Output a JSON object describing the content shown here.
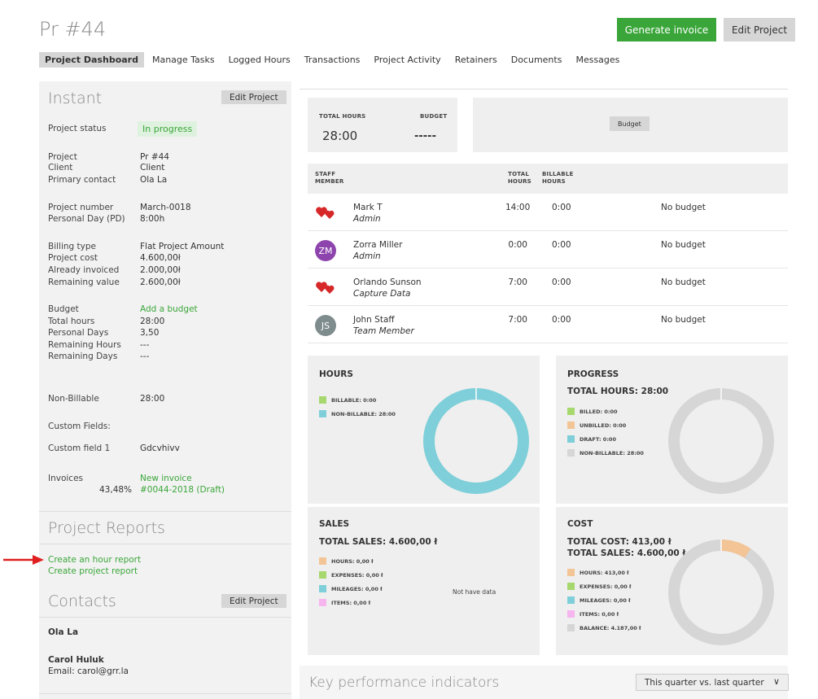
{
  "title": "Pr #44",
  "header": {
    "generate": "Generate invoice",
    "edit": "Edit Project"
  },
  "tabs": [
    "Project Dashboard",
    "Manage Tasks",
    "Logged Hours",
    "Transactions",
    "Project Activity",
    "Retainers",
    "Documents",
    "Messages"
  ],
  "instant": {
    "title": "Instant",
    "edit": "Edit Project",
    "status_label": "Project status",
    "status": "In progress",
    "project_label": "Project",
    "project": "Pr #44",
    "client_label": "Client",
    "client": "Client",
    "contact_label": "Primary contact",
    "contact": "Ola La",
    "number_label": "Project number",
    "number": "March-0018",
    "pd_label": "Personal Day (PD)",
    "pd": "8:00h",
    "billing_label": "Billing type",
    "billing": "Flat Project Amount",
    "cost_label": "Project cost",
    "cost": "4.600,00ł",
    "invoiced_label": "Already invoiced",
    "invoiced": "2.000,00ł",
    "remaining_label": "Remaining value",
    "remaining": "2.600,00ł",
    "budget_label": "Budget",
    "budget": "Add a budget",
    "total_hours_label": "Total hours",
    "total_hours": "28:00",
    "personal_days_label": "Personal Days",
    "personal_days": "3,50",
    "rem_hours_label": "Remaining Hours",
    "rem_hours": "---",
    "rem_days_label": "Remaining Days",
    "rem_days": "---",
    "nonbill_label": "Non-Billable",
    "nonbill": "28:00",
    "custom_fields": "Custom Fields:",
    "cf1_label": "Custom field 1",
    "cf1": "Gdcvhivv",
    "invoices_label": "Invoices",
    "new_invoice": "New invoice",
    "invoice_pct": "43,48%",
    "invoice_link": "#0044-2018 (Draft)"
  },
  "reports": {
    "title": "Project Reports",
    "hour": "Create an hour report",
    "project": "Create project report"
  },
  "contacts": {
    "title": "Contacts",
    "edit": "Edit Project",
    "c1": "Ola La",
    "c2": "Carol Huluk",
    "c2_email": "Email: carol@grr.la"
  },
  "stats": {
    "total_hours_label": "TOTAL HOURS",
    "total_hours": "28:00",
    "budget_label": "BUDGET",
    "budget": "-----",
    "budget_btn": "Budget"
  },
  "staff": {
    "headers": {
      "member": "STAFF MEMBER",
      "total": "TOTAL HOURS",
      "billable": "BILLABLE HOURS"
    },
    "rows": [
      {
        "name": "Mark T",
        "role": "Admin",
        "total": "14:00",
        "billable": "0:00",
        "budget": "No budget",
        "avatar": "hearts"
      },
      {
        "name": "Zorra Miller",
        "role": "Admin",
        "total": "0:00",
        "billable": "0:00",
        "budget": "No budget",
        "avatar": "ZM"
      },
      {
        "name": "Orlando Sunson",
        "role": "Capture Data",
        "total": "7:00",
        "billable": "0:00",
        "budget": "No budget",
        "avatar": "hearts"
      },
      {
        "name": "John Staff",
        "role": "Team Member",
        "total": "7:00",
        "billable": "0:00",
        "budget": "No budget",
        "avatar": "JS"
      }
    ]
  },
  "hours": {
    "title": "HOURS",
    "billable": "BILLABLE: 0:00",
    "nonbillable": "NON-BILLABLE: 28:00"
  },
  "progress": {
    "title": "PROGRESS",
    "total": "TOTAL HOURS: 28:00",
    "billed": "BILLED: 0:00",
    "unbilled": "UNBILLED: 0:00",
    "draft": "DRAFT: 0:00",
    "nonbillable": "NON-BILLABLE: 28:00"
  },
  "sales": {
    "title": "SALES",
    "total": "TOTAL SALES: 4.600,00 ł",
    "hours": "HOURS: 0,00 ł",
    "expenses": "EXPENSES: 0,00 ł",
    "mileages": "MILEAGES: 0,00 ł",
    "items": "ITEMS: 0,00 ł",
    "nodata": "Not have data"
  },
  "cost": {
    "title": "COST",
    "total_cost": "TOTAL COST: 413,00 ł",
    "total_sales": "TOTAL SALES: 4.600,00 ł",
    "hours": "HOURS: 413,00 ł",
    "expenses": "EXPENSES: 0,00 ł",
    "mileages": "MILEAGES: 0,00 ł",
    "items": "ITEMS: 0,00 ł",
    "balance": "BALANCE: 4.187,00 ł"
  },
  "kpi": {
    "title": "Key performance indicators",
    "period": "This quarter vs. last quarter"
  },
  "colors": {
    "green": "#3aa63a",
    "teal": "#7ecfd9",
    "light_green": "#a6d86e",
    "orange": "#f3c496",
    "pink": "#f7b5f0",
    "grey": "#d6d6d6",
    "arrow": "#e02020"
  }
}
